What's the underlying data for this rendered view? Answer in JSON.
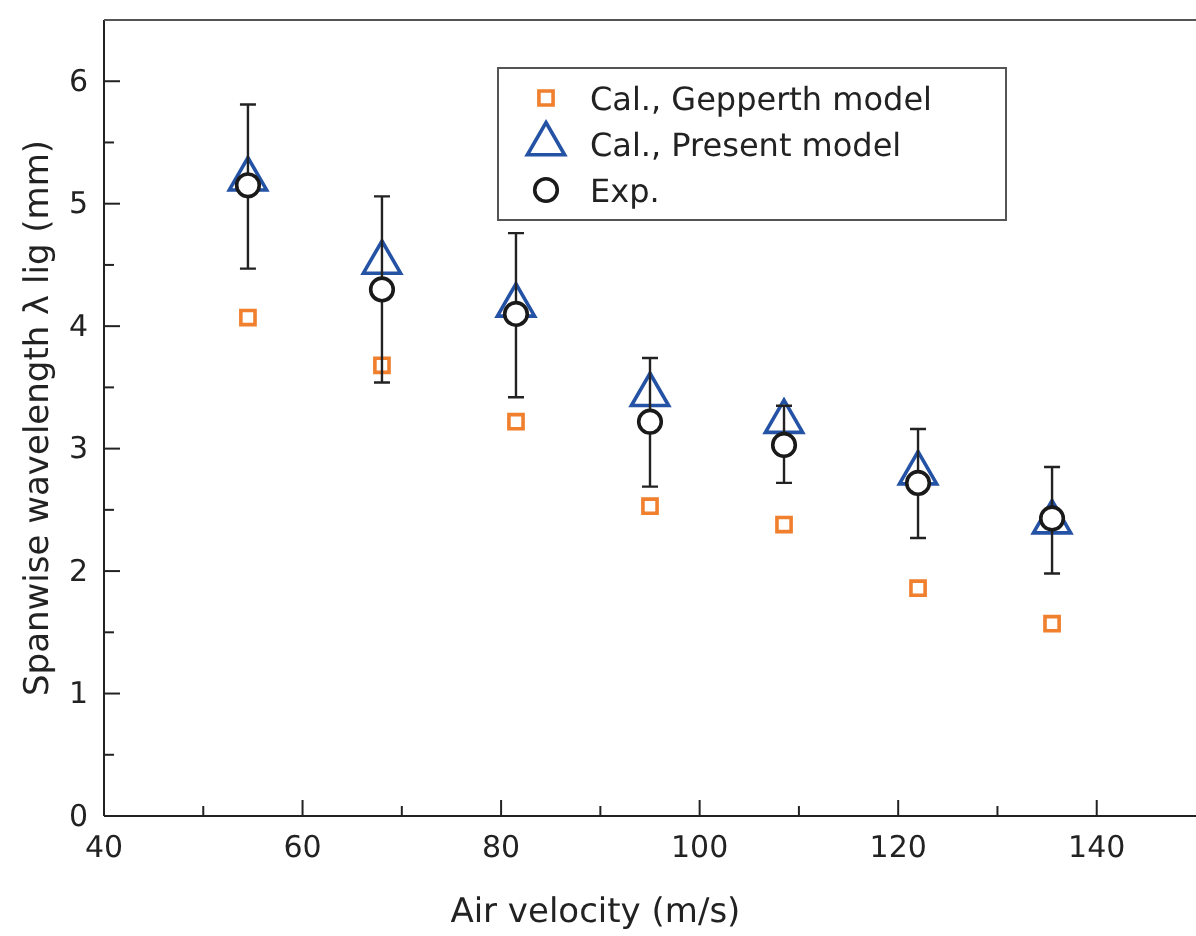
{
  "chart_data": {
    "type": "scatter",
    "xlabel": "Air velocity (m/s)",
    "ylabel": "Spanwise wavelength λ lig (mm)",
    "x": [
      54.5,
      68,
      81.5,
      95,
      108.5,
      122,
      135.5
    ],
    "xlim": [
      40,
      150
    ],
    "xticks": [
      40,
      {
        "value": 50,
        "label": null
      },
      60,
      {
        "value": 70,
        "label": null
      },
      80,
      {
        "value": 90,
        "label": null
      },
      100,
      {
        "value": 110,
        "label": null
      },
      120,
      {
        "value": 130,
        "label": null
      },
      140
    ],
    "ylim": [
      0,
      6.5
    ],
    "yticks": [
      0,
      {
        "value": 0.5,
        "label": null
      },
      1,
      {
        "value": 1.5,
        "label": null
      },
      2,
      {
        "value": 2.5,
        "label": null
      },
      3,
      {
        "value": 3.5,
        "label": null
      },
      4,
      {
        "value": 4.5,
        "label": null
      },
      5,
      {
        "value": 5.5,
        "label": null
      },
      6
    ],
    "legend": "top right",
    "grid": false,
    "series": [
      {
        "name": "Cal., Gepperth model",
        "color": "#f07f2e",
        "marker": "square",
        "values": [
          4.07,
          3.68,
          3.22,
          2.53,
          2.38,
          1.86,
          1.57
        ]
      },
      {
        "name": "Cal., Present model",
        "color": "#2452a4",
        "marker": "triangle",
        "values": [
          5.2,
          4.52,
          4.17,
          3.44,
          3.22,
          2.8,
          2.4
        ]
      },
      {
        "name": "Exp.",
        "color": "#1a1a1a",
        "marker": "circle",
        "values": [
          5.15,
          4.3,
          4.1,
          3.22,
          3.03,
          2.72,
          2.43
        ],
        "errors": [
          [
            4.47,
            5.81
          ],
          [
            3.54,
            5.06
          ],
          [
            3.42,
            4.76
          ],
          [
            2.69,
            3.74
          ],
          [
            2.72,
            3.35
          ],
          [
            2.27,
            3.16
          ],
          [
            1.98,
            2.85
          ]
        ]
      }
    ]
  }
}
